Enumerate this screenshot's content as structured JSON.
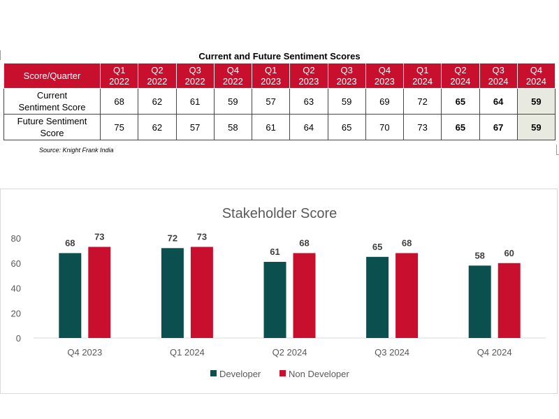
{
  "table": {
    "title": "Current and Future Sentiment Scores",
    "corner_label": "Score/Quarter",
    "columns": [
      [
        "Q1",
        "2022"
      ],
      [
        "Q2",
        "2022"
      ],
      [
        "Q3",
        "2022"
      ],
      [
        "Q4",
        "2022"
      ],
      [
        "Q1",
        "2023"
      ],
      [
        "Q2",
        "2023"
      ],
      [
        "Q3",
        "2023"
      ],
      [
        "Q4",
        "2023"
      ],
      [
        "Q1",
        "2024"
      ],
      [
        "Q2",
        "2024"
      ],
      [
        "Q3",
        "2024"
      ],
      [
        "Q4",
        "2024"
      ]
    ],
    "rows": [
      {
        "label": [
          "Current",
          "Sentiment Score"
        ],
        "values": [
          68,
          62,
          61,
          59,
          57,
          63,
          59,
          69,
          72,
          65,
          64,
          59
        ]
      },
      {
        "label": [
          "Future Sentiment",
          "Score"
        ],
        "values": [
          75,
          62,
          57,
          58,
          61,
          64,
          65,
          70,
          73,
          65,
          67,
          59
        ]
      }
    ],
    "bold_from_index": 9,
    "highlight_index": 11,
    "highlight_color": "#e9eadf",
    "header_color": "#c8102e",
    "source": "Source: Knight Frank India"
  },
  "chart_data": {
    "type": "bar",
    "title": "Stakeholder Score",
    "categories": [
      "Q4 2023",
      "Q1 2024",
      "Q2 2024",
      "Q3 2024",
      "Q4 2024"
    ],
    "series": [
      {
        "name": "Developer",
        "values": [
          68,
          72,
          61,
          65,
          58
        ],
        "color": "#0b4f4f"
      },
      {
        "name": "Non Developer",
        "values": [
          73,
          73,
          68,
          68,
          60
        ],
        "color": "#c8102e"
      }
    ],
    "ylim": [
      0,
      80
    ],
    "yticks": [
      0,
      20,
      40,
      60,
      80
    ],
    "grid": false,
    "legend": "bottom",
    "data_labels": true
  }
}
